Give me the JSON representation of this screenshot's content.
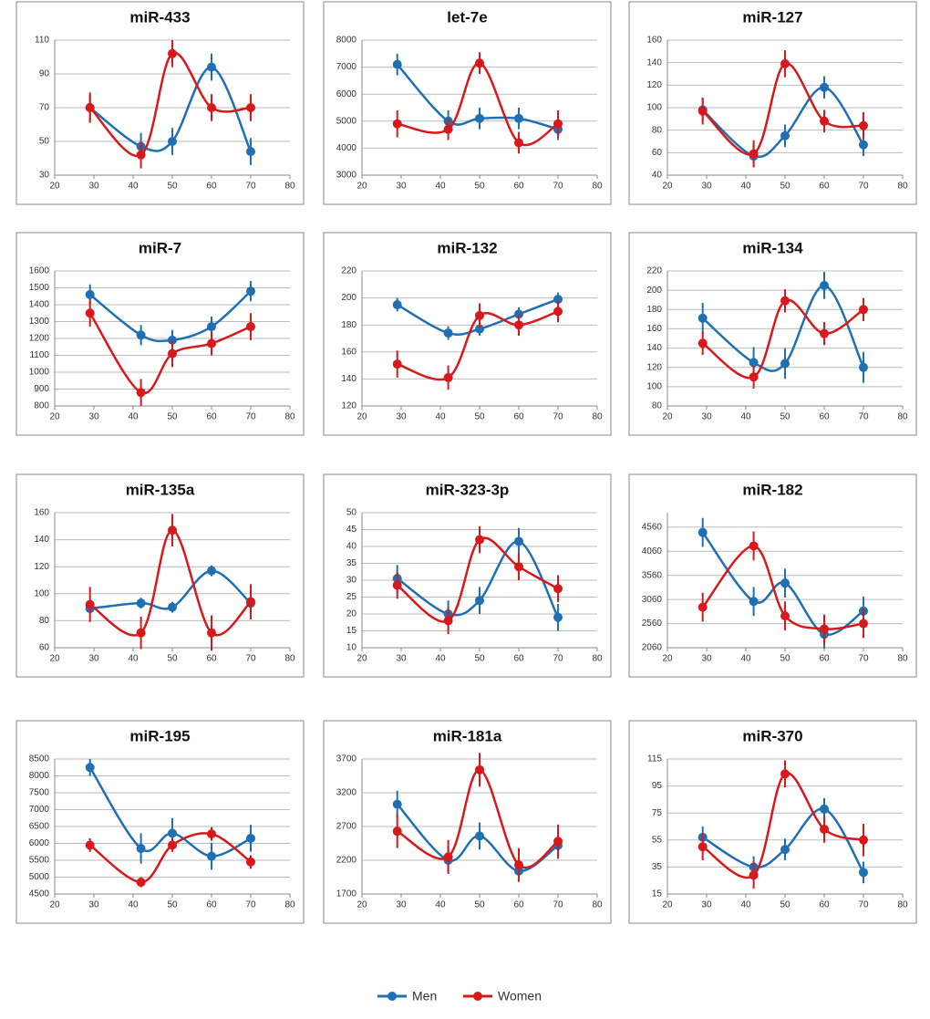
{
  "chart_data": [
    {
      "type": "line",
      "title": "miR-433",
      "x": [
        29,
        42,
        50,
        60,
        70
      ],
      "xlim": [
        20,
        80
      ],
      "xticks": [
        20,
        30,
        40,
        50,
        60,
        70,
        80
      ],
      "ylim": [
        30,
        110
      ],
      "yticks": [
        30,
        50,
        70,
        90,
        110
      ],
      "grid": true,
      "series": [
        {
          "name": "Men",
          "color": "#1f6fb5",
          "values": [
            70,
            47,
            50,
            94,
            44
          ],
          "errors": [
            8,
            8,
            8,
            8,
            8
          ]
        },
        {
          "name": "Women",
          "color": "#d7191c",
          "values": [
            70,
            42,
            102,
            70,
            70
          ],
          "errors": [
            9,
            8,
            8,
            8,
            8
          ]
        }
      ]
    },
    {
      "type": "line",
      "title": "let-7e",
      "x": [
        29,
        42,
        50,
        60,
        70
      ],
      "xlim": [
        20,
        80
      ],
      "xticks": [
        20,
        30,
        40,
        50,
        60,
        70,
        80
      ],
      "ylim": [
        3000,
        8000
      ],
      "yticks": [
        3000,
        4000,
        5000,
        6000,
        7000,
        8000
      ],
      "grid": true,
      "series": [
        {
          "name": "Men",
          "color": "#1f6fb5",
          "values": [
            7100,
            5000,
            5100,
            5100,
            4700
          ],
          "errors": [
            400,
            400,
            400,
            400,
            400
          ]
        },
        {
          "name": "Women",
          "color": "#d7191c",
          "values": [
            4900,
            4700,
            7150,
            4200,
            4900
          ],
          "errors": [
            500,
            400,
            400,
            400,
            500
          ]
        }
      ]
    },
    {
      "type": "line",
      "title": "miR-127",
      "x": [
        29,
        42,
        50,
        60,
        70
      ],
      "xlim": [
        20,
        80
      ],
      "xticks": [
        20,
        30,
        40,
        50,
        60,
        70,
        80
      ],
      "ylim": [
        40,
        160
      ],
      "yticks": [
        40,
        60,
        80,
        100,
        120,
        140,
        160
      ],
      "grid": true,
      "series": [
        {
          "name": "Men",
          "color": "#1f6fb5",
          "values": [
            98,
            57,
            75,
            118,
            67
          ],
          "errors": [
            10,
            10,
            10,
            10,
            10
          ]
        },
        {
          "name": "Women",
          "color": "#d7191c",
          "values": [
            97,
            59,
            139,
            88,
            84
          ],
          "errors": [
            12,
            12,
            12,
            10,
            12
          ]
        }
      ]
    },
    {
      "type": "line",
      "title": "miR-7",
      "x": [
        29,
        42,
        50,
        60,
        70
      ],
      "xlim": [
        20,
        80
      ],
      "xticks": [
        20,
        30,
        40,
        50,
        60,
        70,
        80
      ],
      "ylim": [
        800,
        1600
      ],
      "yticks": [
        800,
        900,
        1000,
        1100,
        1200,
        1300,
        1400,
        1500,
        1600
      ],
      "grid": true,
      "series": [
        {
          "name": "Men",
          "color": "#1f6fb5",
          "values": [
            1460,
            1220,
            1190,
            1270,
            1480
          ],
          "errors": [
            60,
            60,
            60,
            60,
            60
          ]
        },
        {
          "name": "Women",
          "color": "#d7191c",
          "values": [
            1350,
            880,
            1110,
            1170,
            1270
          ],
          "errors": [
            80,
            80,
            80,
            70,
            80
          ]
        }
      ]
    },
    {
      "type": "line",
      "title": "miR-132",
      "x": [
        29,
        42,
        50,
        60,
        70
      ],
      "xlim": [
        20,
        80
      ],
      "xticks": [
        20,
        30,
        40,
        50,
        60,
        70,
        80
      ],
      "ylim": [
        120,
        220
      ],
      "yticks": [
        120,
        140,
        160,
        180,
        200,
        220
      ],
      "grid": true,
      "series": [
        {
          "name": "Men",
          "color": "#1f6fb5",
          "values": [
            195,
            174,
            177,
            188,
            199
          ],
          "errors": [
            5,
            5,
            5,
            5,
            5
          ]
        },
        {
          "name": "Women",
          "color": "#d7191c",
          "values": [
            151,
            141,
            187,
            180,
            190
          ],
          "errors": [
            10,
            9,
            9,
            8,
            8
          ]
        }
      ]
    },
    {
      "type": "line",
      "title": "miR-134",
      "x": [
        29,
        42,
        50,
        60,
        70
      ],
      "xlim": [
        20,
        80
      ],
      "xticks": [
        20,
        30,
        40,
        50,
        60,
        70,
        80
      ],
      "ylim": [
        80,
        220
      ],
      "yticks": [
        80,
        100,
        120,
        140,
        160,
        180,
        200,
        220
      ],
      "grid": true,
      "series": [
        {
          "name": "Men",
          "color": "#1f6fb5",
          "values": [
            171,
            125,
            124,
            205,
            120
          ],
          "errors": [
            16,
            16,
            16,
            14,
            16
          ]
        },
        {
          "name": "Women",
          "color": "#d7191c",
          "values": [
            145,
            110,
            189,
            155,
            180
          ],
          "errors": [
            12,
            12,
            12,
            12,
            12
          ]
        }
      ]
    },
    {
      "type": "line",
      "title": "miR-135a",
      "x": [
        29,
        42,
        50,
        60,
        70
      ],
      "xlim": [
        20,
        80
      ],
      "xticks": [
        20,
        30,
        40,
        50,
        60,
        70,
        80
      ],
      "ylim": [
        60,
        160
      ],
      "yticks": [
        60,
        80,
        100,
        120,
        140,
        160
      ],
      "grid": true,
      "series": [
        {
          "name": "Men",
          "color": "#1f6fb5",
          "values": [
            89,
            93,
            90,
            117,
            93
          ],
          "errors": [
            4,
            4,
            4,
            4,
            4
          ]
        },
        {
          "name": "Women",
          "color": "#d7191c",
          "values": [
            92,
            71,
            147,
            71,
            94
          ],
          "errors": [
            13,
            12,
            12,
            13,
            13
          ]
        }
      ]
    },
    {
      "type": "line",
      "title": "miR-323-3p",
      "x": [
        29,
        42,
        50,
        60,
        70
      ],
      "xlim": [
        20,
        80
      ],
      "xticks": [
        20,
        30,
        40,
        50,
        60,
        70,
        80
      ],
      "ylim": [
        10,
        50
      ],
      "yticks": [
        10,
        15,
        20,
        25,
        30,
        35,
        40,
        45,
        50
      ],
      "grid": true,
      "series": [
        {
          "name": "Men",
          "color": "#1f6fb5",
          "values": [
            30.5,
            20,
            24,
            41.5,
            19
          ],
          "errors": [
            4,
            4,
            4,
            4,
            4
          ]
        },
        {
          "name": "Women",
          "color": "#d7191c",
          "values": [
            28.5,
            18,
            42,
            34,
            27.5
          ],
          "errors": [
            4,
            4,
            4,
            4,
            4
          ]
        }
      ]
    },
    {
      "type": "line",
      "title": "miR-182",
      "x": [
        29,
        42,
        50,
        60,
        70
      ],
      "xlim": [
        20,
        80
      ],
      "xticks": [
        20,
        30,
        40,
        50,
        60,
        70,
        80
      ],
      "ylim": [
        2060,
        4860
      ],
      "yticks": [
        2060,
        2560,
        3060,
        3560,
        4060,
        4560
      ],
      "grid": true,
      "series": [
        {
          "name": "Men",
          "color": "#1f6fb5",
          "values": [
            4450,
            3020,
            3400,
            2340,
            2820
          ],
          "errors": [
            300,
            300,
            300,
            300,
            300
          ]
        },
        {
          "name": "Women",
          "color": "#d7191c",
          "values": [
            2900,
            4170,
            2720,
            2450,
            2560
          ],
          "errors": [
            300,
            300,
            300,
            300,
            300
          ]
        }
      ]
    },
    {
      "type": "line",
      "title": "miR-195",
      "x": [
        29,
        42,
        50,
        60,
        70
      ],
      "xlim": [
        20,
        80
      ],
      "xticks": [
        20,
        30,
        40,
        50,
        60,
        70,
        80
      ],
      "ylim": [
        4500,
        8500
      ],
      "yticks": [
        4500,
        5000,
        5500,
        6000,
        6500,
        7000,
        7500,
        8000,
        8500
      ],
      "grid": true,
      "series": [
        {
          "name": "Men",
          "color": "#1f6fb5",
          "values": [
            8250,
            5850,
            6300,
            5620,
            6150
          ],
          "errors": [
            250,
            450,
            450,
            400,
            400
          ]
        },
        {
          "name": "Women",
          "color": "#d7191c",
          "values": [
            5950,
            4850,
            5950,
            6280,
            5450
          ],
          "errors": [
            200,
            150,
            200,
            200,
            200
          ]
        }
      ]
    },
    {
      "type": "line",
      "title": "miR-181a",
      "x": [
        29,
        42,
        50,
        60,
        70
      ],
      "xlim": [
        20,
        80
      ],
      "xticks": [
        20,
        30,
        40,
        50,
        60,
        70,
        80
      ],
      "ylim": [
        1700,
        3700
      ],
      "yticks": [
        1700,
        2200,
        2700,
        3200,
        3700
      ],
      "grid": true,
      "series": [
        {
          "name": "Men",
          "color": "#1f6fb5",
          "values": [
            3030,
            2200,
            2560,
            2040,
            2420
          ],
          "errors": [
            200,
            200,
            200,
            150,
            200
          ]
        },
        {
          "name": "Women",
          "color": "#d7191c",
          "values": [
            2630,
            2250,
            3540,
            2130,
            2480
          ],
          "errors": [
            250,
            250,
            250,
            250,
            250
          ]
        }
      ]
    },
    {
      "type": "line",
      "title": "miR-370",
      "x": [
        29,
        42,
        50,
        60,
        70
      ],
      "xlim": [
        20,
        80
      ],
      "xticks": [
        20,
        30,
        40,
        50,
        60,
        70,
        80
      ],
      "ylim": [
        15,
        115
      ],
      "yticks": [
        15,
        35,
        55,
        75,
        95,
        115
      ],
      "grid": true,
      "series": [
        {
          "name": "Men",
          "color": "#1f6fb5",
          "values": [
            57,
            35,
            48,
            78,
            31
          ],
          "errors": [
            8,
            8,
            8,
            8,
            8
          ]
        },
        {
          "name": "Women",
          "color": "#d7191c",
          "values": [
            50,
            29,
            104,
            63,
            55
          ],
          "errors": [
            10,
            10,
            10,
            10,
            12
          ]
        }
      ]
    }
  ]
}
